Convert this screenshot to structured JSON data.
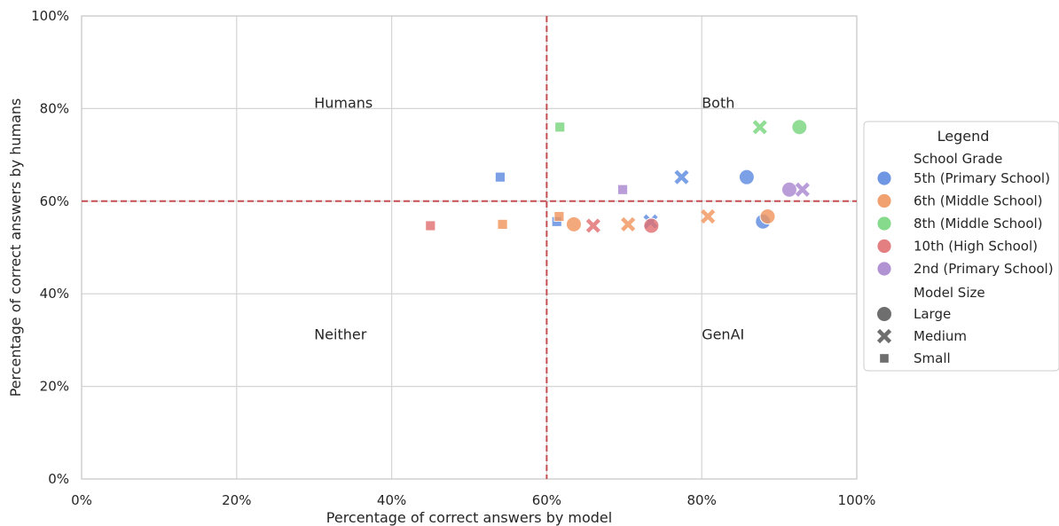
{
  "chart_data": {
    "type": "scatter",
    "xlabel": "Percentage of correct answers by model",
    "ylabel": "Percentage of correct answers by humans",
    "xlim": [
      0,
      100
    ],
    "ylim": [
      0,
      100
    ],
    "x_ticks": [
      "0%",
      "20%",
      "40%",
      "60%",
      "80%",
      "100%"
    ],
    "y_ticks": [
      "0%",
      "20%",
      "40%",
      "60%",
      "80%",
      "100%"
    ],
    "grid": true,
    "threshold_lines": {
      "x": 60,
      "y": 60,
      "style": "dashed",
      "color": "#c44e52"
    },
    "quadrant_labels": [
      {
        "text": "Humans",
        "x": 30,
        "y": 80
      },
      {
        "text": "Both",
        "x": 80,
        "y": 80
      },
      {
        "text": "Neither",
        "x": 30,
        "y": 30
      },
      {
        "text": "GenAI",
        "x": 80,
        "y": 30
      }
    ],
    "legend": {
      "title": "Legend",
      "position": "right",
      "hue_title": "School Grade",
      "size_title": "Model Size"
    },
    "grades": [
      {
        "name": "5th (Primary School)",
        "color": "#5f8be0"
      },
      {
        "name": "6th (Middle School)",
        "color": "#f0965f"
      },
      {
        "name": "8th (Middle School)",
        "color": "#79d67f"
      },
      {
        "name": "10th (High School)",
        "color": "#e07073"
      },
      {
        "name": "2nd (Primary School)",
        "color": "#a987cf"
      }
    ],
    "sizes": [
      {
        "name": "Large",
        "marker": "circle"
      },
      {
        "name": "Medium",
        "marker": "x"
      },
      {
        "name": "Small",
        "marker": "square"
      }
    ],
    "points": [
      {
        "grade": "5th (Primary School)",
        "size": "Large",
        "x": 85.8,
        "y": 65.2
      },
      {
        "grade": "5th (Primary School)",
        "size": "Large",
        "x": 87.9,
        "y": 55.6
      },
      {
        "grade": "5th (Primary School)",
        "size": "Medium",
        "x": 77.4,
        "y": 65.2
      },
      {
        "grade": "5th (Primary School)",
        "size": "Medium",
        "x": 73.4,
        "y": 55.6
      },
      {
        "grade": "5th (Primary School)",
        "size": "Small",
        "x": 54.0,
        "y": 65.2
      },
      {
        "grade": "5th (Primary School)",
        "size": "Small",
        "x": 61.3,
        "y": 55.6
      },
      {
        "grade": "6th (Middle School)",
        "size": "Large",
        "x": 63.5,
        "y": 55.0
      },
      {
        "grade": "6th (Middle School)",
        "size": "Large",
        "x": 88.5,
        "y": 56.7
      },
      {
        "grade": "6th (Middle School)",
        "size": "Medium",
        "x": 70.5,
        "y": 55.0
      },
      {
        "grade": "6th (Middle School)",
        "size": "Medium",
        "x": 80.8,
        "y": 56.7
      },
      {
        "grade": "6th (Middle School)",
        "size": "Small",
        "x": 54.3,
        "y": 55.0
      },
      {
        "grade": "6th (Middle School)",
        "size": "Small",
        "x": 61.6,
        "y": 56.7
      },
      {
        "grade": "8th (Middle School)",
        "size": "Large",
        "x": 92.6,
        "y": 76.0
      },
      {
        "grade": "8th (Middle School)",
        "size": "Medium",
        "x": 87.5,
        "y": 76.0
      },
      {
        "grade": "8th (Middle School)",
        "size": "Small",
        "x": 61.7,
        "y": 76.0
      },
      {
        "grade": "10th (High School)",
        "size": "Large",
        "x": 73.5,
        "y": 54.7
      },
      {
        "grade": "10th (High School)",
        "size": "Medium",
        "x": 66.0,
        "y": 54.7
      },
      {
        "grade": "10th (High School)",
        "size": "Small",
        "x": 45.0,
        "y": 54.7
      },
      {
        "grade": "2nd (Primary School)",
        "size": "Large",
        "x": 91.3,
        "y": 62.5
      },
      {
        "grade": "2nd (Primary School)",
        "size": "Medium",
        "x": 93.0,
        "y": 62.5
      },
      {
        "grade": "2nd (Primary School)",
        "size": "Small",
        "x": 69.8,
        "y": 62.5
      }
    ]
  }
}
